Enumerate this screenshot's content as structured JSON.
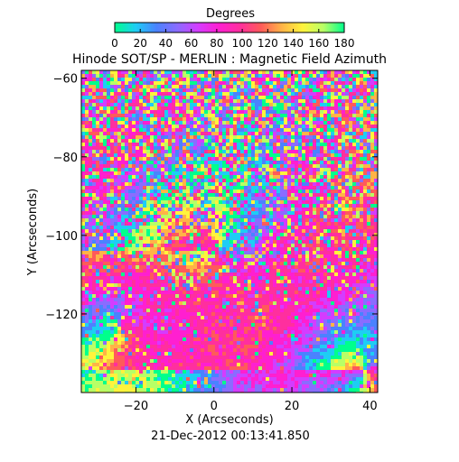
{
  "colorbar": {
    "label": "Degrees",
    "ticks": [
      "0",
      "20",
      "40",
      "60",
      "80",
      "100",
      "120",
      "140",
      "160",
      "180"
    ],
    "range": [
      0,
      180
    ],
    "colors": [
      "#00ff8c",
      "#1ecdf4",
      "#4a82ff",
      "#8a6cff",
      "#d43cff",
      "#ff1fd0",
      "#ff2f9e",
      "#ff5a5a",
      "#ffb347",
      "#fff33c",
      "#b8ff66",
      "#00ff8c"
    ]
  },
  "chart_data": {
    "type": "heatmap",
    "title": "Hinode SOT/SP - MERLIN : Magnetic Field Azimuth",
    "xlabel": "X (Arcseconds)",
    "ylabel": "Y (Arcseconds)",
    "xlim": [
      -34,
      42
    ],
    "ylim": [
      -140,
      -58
    ],
    "x_ticks": [
      -20,
      0,
      20,
      40
    ],
    "y_ticks": [
      -60,
      -80,
      -100,
      -120
    ],
    "x_tick_labels": [
      "−20",
      "0",
      "20",
      "40"
    ],
    "y_tick_labels": [
      "−60",
      "−80",
      "−100",
      "−120"
    ],
    "value_unit": "Degrees",
    "value_range": [
      0,
      180
    ],
    "grid": false
  },
  "footer": {
    "timestamp": "21-Dec-2012 00:13:41.850"
  }
}
